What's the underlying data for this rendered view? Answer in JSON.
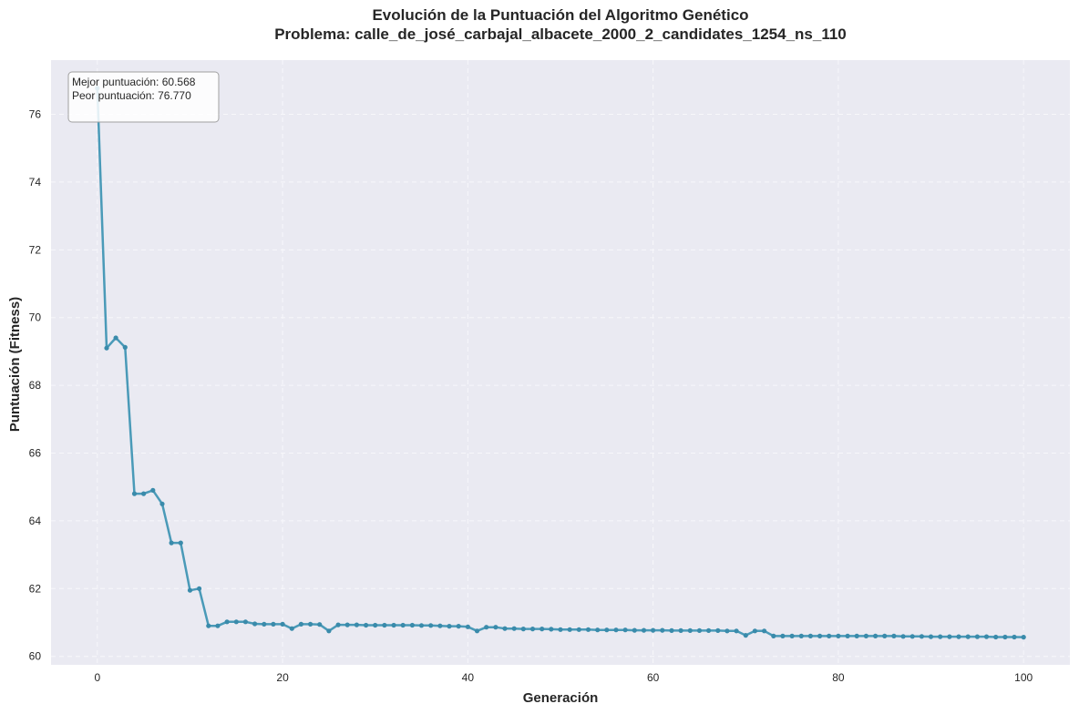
{
  "chart_data": {
    "type": "line",
    "title": "Evolución de la Puntuación del Algoritmo Genético",
    "subtitle": "Problema: calle_de_josé_carbajal_albacete_2000_2_candidates_1254_ns_110",
    "xlabel": "Generación",
    "ylabel": "Puntuación (Fitness)",
    "xlim": [
      -5,
      105
    ],
    "ylim": [
      59.75,
      77.6
    ],
    "x_ticks": [
      0,
      20,
      40,
      60,
      80,
      100
    ],
    "y_ticks": [
      60,
      62,
      64,
      66,
      68,
      70,
      72,
      74,
      76
    ],
    "grid": true,
    "colors": {
      "line": "#4a9ab8",
      "marker": "#3a8bab",
      "plot_bg": "#eaeaf2",
      "grid": "#f7f7fb"
    },
    "annotation": {
      "best_line": "Mejor puntuación: 60.568",
      "worst_line": "Peor puntuación: 76.770",
      "placement": "top-left"
    },
    "series": [
      {
        "x": [
          0,
          1,
          2,
          3,
          4,
          5,
          6,
          7,
          8,
          9,
          10,
          11,
          12,
          13,
          14,
          15,
          16,
          17,
          18,
          19,
          20,
          21,
          22,
          23,
          24,
          25,
          26,
          27,
          28,
          29,
          30,
          31,
          32,
          33,
          34,
          35,
          36,
          37,
          38,
          39,
          40,
          41,
          42,
          43,
          44,
          45,
          46,
          47,
          48,
          49,
          50,
          51,
          52,
          53,
          54,
          55,
          56,
          57,
          58,
          59,
          60,
          61,
          62,
          63,
          64,
          65,
          66,
          67,
          68,
          69,
          70,
          71,
          72,
          73,
          74,
          75,
          76,
          77,
          78,
          79,
          80,
          81,
          82,
          83,
          84,
          85,
          86,
          87,
          88,
          89,
          90,
          91,
          92,
          93,
          94,
          95,
          96,
          97,
          98,
          99,
          100
        ],
        "values": [
          76.77,
          69.1,
          69.4,
          69.12,
          64.8,
          64.8,
          64.9,
          64.5,
          63.35,
          63.35,
          61.95,
          62.0,
          60.9,
          60.9,
          61.02,
          61.02,
          61.02,
          60.96,
          60.95,
          60.95,
          60.95,
          60.82,
          60.95,
          60.95,
          60.94,
          60.75,
          60.93,
          60.93,
          60.93,
          60.92,
          60.92,
          60.92,
          60.92,
          60.92,
          60.92,
          60.91,
          60.91,
          60.9,
          60.89,
          60.89,
          60.87,
          60.75,
          60.86,
          60.86,
          60.82,
          60.82,
          60.81,
          60.81,
          60.81,
          60.8,
          60.79,
          60.79,
          60.79,
          60.79,
          60.78,
          60.78,
          60.78,
          60.78,
          60.77,
          60.77,
          60.77,
          60.77,
          60.76,
          60.76,
          60.76,
          60.76,
          60.76,
          60.76,
          60.75,
          60.75,
          60.62,
          60.75,
          60.75,
          60.6,
          60.6,
          60.6,
          60.6,
          60.6,
          60.6,
          60.6,
          60.6,
          60.6,
          60.6,
          60.6,
          60.6,
          60.6,
          60.6,
          60.59,
          60.59,
          60.59,
          60.58,
          60.58,
          60.58,
          60.58,
          60.58,
          60.58,
          60.58,
          60.57,
          60.57,
          60.57,
          60.568
        ]
      }
    ]
  }
}
